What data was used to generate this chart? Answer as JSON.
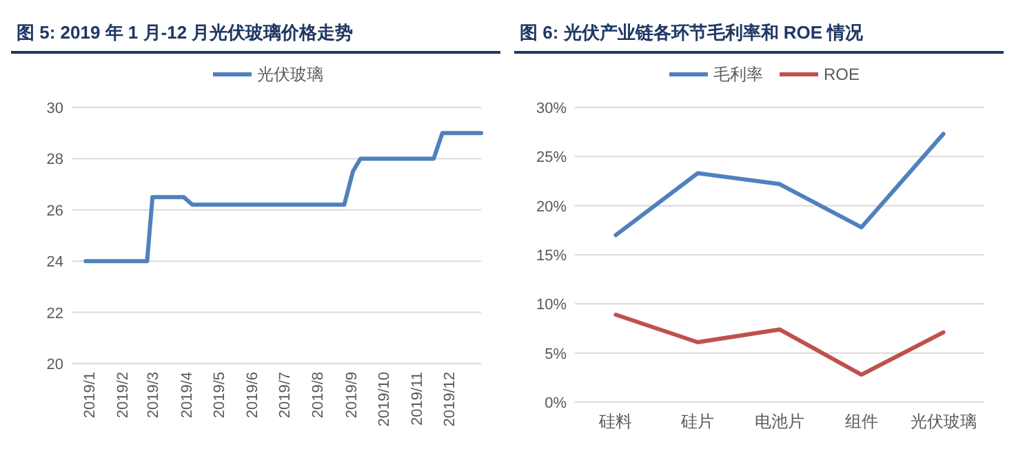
{
  "chart_data": [
    {
      "type": "line",
      "title": "图 5: 2019 年 1 月-12 月光伏玻璃价格走势",
      "legend": "top",
      "grid": "y",
      "xlim": [
        "2018-12-16",
        "2019-12-31"
      ],
      "xticks": [
        {
          "value": "2019-01",
          "label": "2019/1"
        },
        {
          "value": "2019-02",
          "label": "2019/2"
        },
        {
          "value": "2019-03",
          "label": "2019/3"
        },
        {
          "value": "2019-04",
          "label": "2019/4"
        },
        {
          "value": "2019-05",
          "label": "2019/5"
        },
        {
          "value": "2019-06",
          "label": "2019/6"
        },
        {
          "value": "2019-07",
          "label": "2019/7"
        },
        {
          "value": "2019-08",
          "label": "2019/8"
        },
        {
          "value": "2019-09",
          "label": "2019/9"
        },
        {
          "value": "2019-10",
          "label": "2019/10"
        },
        {
          "value": "2019-11",
          "label": "2019/11"
        },
        {
          "value": "2019-12",
          "label": "2019/12"
        }
      ],
      "ylim": [
        20,
        30
      ],
      "yticks": [
        20,
        22,
        24,
        26,
        28,
        30
      ],
      "series": [
        {
          "name": "光伏玻璃",
          "color": "#4f81bd",
          "x": [
            "2018-12-29",
            "2019-02-24",
            "2019-03-01",
            "2019-03-30",
            "2019-04-07",
            "2019-08-26",
            "2019-09-03",
            "2019-09-10",
            "2019-11-17",
            "2019-11-25",
            "2019-12-31"
          ],
          "values": [
            24,
            24,
            26.5,
            26.5,
            26.2,
            26.2,
            27.5,
            28,
            28,
            29,
            29
          ]
        }
      ]
    },
    {
      "type": "line",
      "title": "图 6: 光伏产业链各环节毛利率和 ROE 情况",
      "legend": "top",
      "grid": "y",
      "categories": [
        "硅料",
        "硅片",
        "电池片",
        "组件",
        "光伏玻璃"
      ],
      "ylim": [
        0,
        30
      ],
      "yticks": [
        {
          "value": 0,
          "label": "0%"
        },
        {
          "value": 5,
          "label": "5%"
        },
        {
          "value": 10,
          "label": "10%"
        },
        {
          "value": 15,
          "label": "15%"
        },
        {
          "value": 20,
          "label": "20%"
        },
        {
          "value": 25,
          "label": "25%"
        },
        {
          "value": 30,
          "label": "30%"
        }
      ],
      "series": [
        {
          "name": "毛利率",
          "color": "#4f81bd",
          "values": [
            17.0,
            23.3,
            22.2,
            17.8,
            27.3
          ]
        },
        {
          "name": "ROE",
          "color": "#c0504d",
          "values": [
            8.9,
            6.1,
            7.4,
            2.8,
            7.1
          ]
        }
      ]
    }
  ]
}
